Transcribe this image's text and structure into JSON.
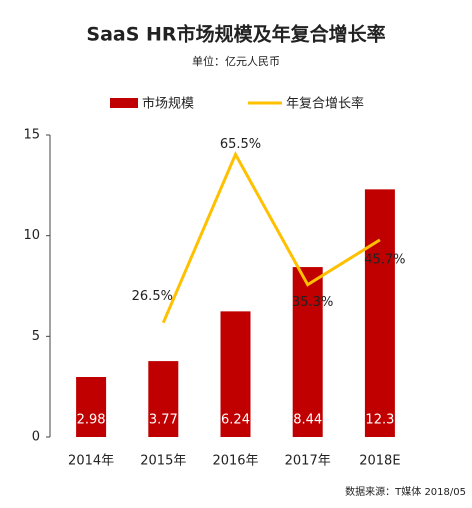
{
  "chart_data": {
    "type": "bar_line",
    "title": "SaaS HR市场规模及年复合增长率",
    "subtitle": "单位：亿元人民币",
    "source": "数据来源：T媒体 2018/05",
    "categories": [
      "2014年",
      "2015年",
      "2016年",
      "2017年",
      "2018E"
    ],
    "series": [
      {
        "name": "市场规模",
        "type": "bar",
        "color": "#c00000",
        "values": [
          2.98,
          3.77,
          6.24,
          8.44,
          12.3
        ]
      },
      {
        "name": "年复合增长率",
        "type": "line",
        "axis": "y2",
        "color": "#ffc000",
        "values": [
          null,
          26.5,
          65.5,
          35.3,
          45.7
        ],
        "value_labels": [
          null,
          "26.5%",
          "65.5%",
          "35.3%",
          "45.7%"
        ]
      }
    ],
    "ylim": [
      0,
      15
    ],
    "yticks": [
      0,
      5,
      10,
      15
    ],
    "y2lim": [
      0,
      70
    ],
    "legend": "top"
  }
}
